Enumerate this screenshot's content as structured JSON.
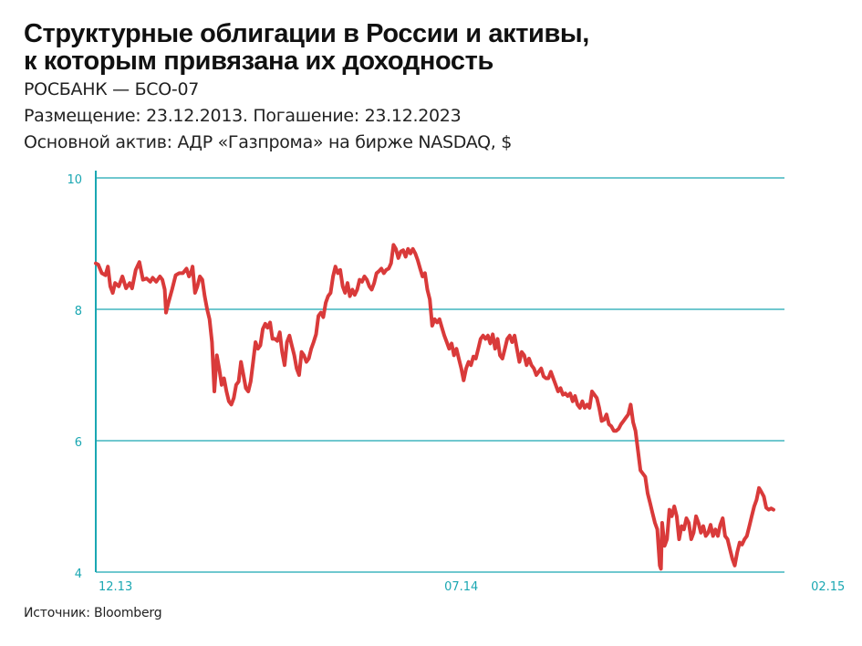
{
  "header": {
    "title_line1": "Структурные облигации в России и активы,",
    "title_line2": "к которым привязана их доходность",
    "bank": "РОСБАНК — БСО-07",
    "dates": "Размещение: 23.12.2013. Погашение: 23.12.2023",
    "asset": "Основной актив: АДР «Газпрома» на бирже NASDAQ, $"
  },
  "footer": {
    "source": "Источник: Bloomberg"
  },
  "colors": {
    "line": "#d93a3a",
    "axis": "#1aa7b2",
    "tick_text": "#1aa7b2"
  },
  "chart_data": {
    "type": "line",
    "title": "",
    "xlabel": "",
    "ylabel": "",
    "ylim": [
      4,
      10
    ],
    "yticks": [
      10,
      8,
      6,
      4
    ],
    "xtick_labels": [
      {
        "label": "12.13",
        "index": 0
      },
      {
        "label": "07.14",
        "index": 302
      },
      {
        "label": "02.15",
        "index": 605
      }
    ],
    "grid": true,
    "series": [
      {
        "anchors": [
          [
            0,
            8.7
          ],
          [
            2,
            8.68
          ],
          [
            5,
            8.55
          ],
          [
            8,
            8.52
          ],
          [
            10,
            8.65
          ],
          [
            12,
            8.35
          ],
          [
            14,
            8.25
          ],
          [
            16,
            8.4
          ],
          [
            19,
            8.35
          ],
          [
            22,
            8.5
          ],
          [
            25,
            8.32
          ],
          [
            28,
            8.4
          ],
          [
            30,
            8.32
          ],
          [
            33,
            8.6
          ],
          [
            36,
            8.72
          ],
          [
            39,
            8.45
          ],
          [
            42,
            8.47
          ],
          [
            45,
            8.42
          ],
          [
            47,
            8.48
          ],
          [
            50,
            8.42
          ],
          [
            53,
            8.5
          ],
          [
            55,
            8.45
          ],
          [
            57,
            8.3
          ],
          [
            58,
            7.95
          ],
          [
            60,
            8.1
          ],
          [
            63,
            8.3
          ],
          [
            66,
            8.52
          ],
          [
            69,
            8.55
          ],
          [
            72,
            8.55
          ],
          [
            75,
            8.62
          ],
          [
            77,
            8.5
          ],
          [
            79,
            8.58
          ],
          [
            80,
            8.65
          ],
          [
            82,
            8.25
          ],
          [
            84,
            8.35
          ],
          [
            86,
            8.5
          ],
          [
            88,
            8.45
          ],
          [
            90,
            8.2
          ],
          [
            92,
            8.0
          ],
          [
            94,
            7.85
          ],
          [
            96,
            7.5
          ],
          [
            98,
            6.75
          ],
          [
            100,
            7.3
          ],
          [
            102,
            7.1
          ],
          [
            104,
            6.85
          ],
          [
            106,
            6.95
          ],
          [
            108,
            6.75
          ],
          [
            110,
            6.6
          ],
          [
            112,
            6.55
          ],
          [
            114,
            6.65
          ],
          [
            116,
            6.85
          ],
          [
            118,
            6.9
          ],
          [
            120,
            7.2
          ],
          [
            122,
            7.0
          ],
          [
            124,
            6.8
          ],
          [
            126,
            6.75
          ],
          [
            128,
            6.9
          ],
          [
            130,
            7.2
          ],
          [
            132,
            7.5
          ],
          [
            134,
            7.4
          ],
          [
            136,
            7.45
          ],
          [
            138,
            7.7
          ],
          [
            140,
            7.78
          ],
          [
            142,
            7.72
          ],
          [
            144,
            7.8
          ],
          [
            146,
            7.55
          ],
          [
            148,
            7.55
          ],
          [
            150,
            7.52
          ],
          [
            152,
            7.65
          ],
          [
            154,
            7.35
          ],
          [
            156,
            7.15
          ],
          [
            158,
            7.5
          ],
          [
            160,
            7.6
          ],
          [
            162,
            7.45
          ],
          [
            164,
            7.3
          ],
          [
            166,
            7.1
          ],
          [
            168,
            7.0
          ],
          [
            170,
            7.35
          ],
          [
            172,
            7.3
          ],
          [
            174,
            7.2
          ],
          [
            176,
            7.25
          ],
          [
            178,
            7.4
          ],
          [
            180,
            7.5
          ],
          [
            182,
            7.62
          ],
          [
            184,
            7.9
          ],
          [
            186,
            7.95
          ],
          [
            188,
            7.88
          ],
          [
            190,
            8.1
          ],
          [
            192,
            8.2
          ],
          [
            194,
            8.25
          ],
          [
            196,
            8.5
          ],
          [
            198,
            8.65
          ],
          [
            200,
            8.55
          ],
          [
            202,
            8.6
          ],
          [
            204,
            8.35
          ],
          [
            206,
            8.25
          ],
          [
            208,
            8.4
          ],
          [
            210,
            8.2
          ],
          [
            212,
            8.3
          ],
          [
            214,
            8.22
          ],
          [
            216,
            8.3
          ],
          [
            218,
            8.45
          ],
          [
            220,
            8.42
          ],
          [
            222,
            8.5
          ],
          [
            224,
            8.45
          ],
          [
            226,
            8.35
          ],
          [
            228,
            8.3
          ],
          [
            230,
            8.4
          ],
          [
            232,
            8.55
          ],
          [
            234,
            8.58
          ],
          [
            236,
            8.62
          ],
          [
            238,
            8.55
          ],
          [
            240,
            8.6
          ],
          [
            242,
            8.62
          ],
          [
            244,
            8.7
          ],
          [
            246,
            8.98
          ],
          [
            248,
            8.92
          ],
          [
            250,
            8.78
          ],
          [
            252,
            8.88
          ],
          [
            254,
            8.9
          ],
          [
            256,
            8.8
          ],
          [
            258,
            8.92
          ],
          [
            260,
            8.85
          ],
          [
            262,
            8.92
          ],
          [
            264,
            8.85
          ],
          [
            266,
            8.75
          ],
          [
            268,
            8.62
          ],
          [
            270,
            8.5
          ],
          [
            272,
            8.55
          ],
          [
            274,
            8.3
          ],
          [
            276,
            8.15
          ],
          [
            278,
            7.75
          ],
          [
            280,
            7.85
          ],
          [
            282,
            7.8
          ],
          [
            284,
            7.85
          ],
          [
            286,
            7.72
          ],
          [
            288,
            7.6
          ],
          [
            290,
            7.5
          ],
          [
            292,
            7.4
          ],
          [
            294,
            7.48
          ],
          [
            296,
            7.3
          ],
          [
            298,
            7.4
          ],
          [
            300,
            7.25
          ],
          [
            302,
            7.1
          ],
          [
            304,
            6.92
          ],
          [
            306,
            7.1
          ],
          [
            308,
            7.2
          ],
          [
            310,
            7.15
          ],
          [
            312,
            7.28
          ],
          [
            314,
            7.25
          ],
          [
            316,
            7.4
          ],
          [
            318,
            7.55
          ],
          [
            320,
            7.6
          ],
          [
            322,
            7.55
          ],
          [
            324,
            7.6
          ],
          [
            326,
            7.48
          ],
          [
            328,
            7.62
          ],
          [
            330,
            7.4
          ],
          [
            332,
            7.55
          ],
          [
            334,
            7.3
          ],
          [
            336,
            7.25
          ],
          [
            338,
            7.4
          ],
          [
            340,
            7.55
          ],
          [
            342,
            7.6
          ],
          [
            344,
            7.5
          ],
          [
            346,
            7.6
          ],
          [
            348,
            7.4
          ],
          [
            350,
            7.2
          ],
          [
            352,
            7.35
          ],
          [
            354,
            7.3
          ],
          [
            356,
            7.15
          ],
          [
            358,
            7.25
          ],
          [
            360,
            7.15
          ],
          [
            362,
            7.1
          ],
          [
            364,
            7.0
          ],
          [
            366,
            7.05
          ],
          [
            368,
            7.1
          ],
          [
            370,
            6.98
          ],
          [
            372,
            6.95
          ],
          [
            374,
            6.95
          ],
          [
            376,
            7.05
          ],
          [
            378,
            6.95
          ],
          [
            380,
            6.85
          ],
          [
            382,
            6.75
          ],
          [
            384,
            6.8
          ],
          [
            386,
            6.7
          ],
          [
            388,
            6.72
          ],
          [
            390,
            6.68
          ],
          [
            392,
            6.72
          ],
          [
            394,
            6.6
          ],
          [
            396,
            6.68
          ],
          [
            398,
            6.55
          ],
          [
            400,
            6.5
          ],
          [
            402,
            6.6
          ],
          [
            404,
            6.5
          ],
          [
            406,
            6.55
          ],
          [
            408,
            6.5
          ],
          [
            410,
            6.75
          ],
          [
            412,
            6.7
          ],
          [
            414,
            6.65
          ],
          [
            416,
            6.5
          ],
          [
            418,
            6.3
          ],
          [
            420,
            6.32
          ],
          [
            422,
            6.4
          ],
          [
            424,
            6.25
          ],
          [
            426,
            6.22
          ],
          [
            428,
            6.15
          ],
          [
            430,
            6.15
          ],
          [
            432,
            6.18
          ],
          [
            434,
            6.25
          ],
          [
            436,
            6.3
          ],
          [
            438,
            6.35
          ],
          [
            440,
            6.4
          ],
          [
            442,
            6.55
          ],
          [
            444,
            6.28
          ],
          [
            446,
            6.15
          ],
          [
            448,
            5.85
          ],
          [
            450,
            5.55
          ],
          [
            452,
            5.5
          ],
          [
            454,
            5.45
          ],
          [
            456,
            5.2
          ],
          [
            458,
            5.05
          ],
          [
            460,
            4.9
          ],
          [
            462,
            4.75
          ],
          [
            464,
            4.65
          ],
          [
            466,
            4.1
          ],
          [
            467,
            4.05
          ],
          [
            468,
            4.75
          ],
          [
            470,
            4.4
          ],
          [
            472,
            4.5
          ],
          [
            474,
            4.95
          ],
          [
            476,
            4.85
          ],
          [
            478,
            5.0
          ],
          [
            480,
            4.85
          ],
          [
            482,
            4.5
          ],
          [
            484,
            4.7
          ],
          [
            486,
            4.65
          ],
          [
            488,
            4.82
          ],
          [
            490,
            4.75
          ],
          [
            492,
            4.5
          ],
          [
            494,
            4.6
          ],
          [
            496,
            4.85
          ],
          [
            498,
            4.75
          ],
          [
            500,
            4.6
          ],
          [
            502,
            4.7
          ],
          [
            504,
            4.55
          ],
          [
            506,
            4.6
          ],
          [
            508,
            4.72
          ],
          [
            510,
            4.55
          ],
          [
            512,
            4.65
          ],
          [
            514,
            4.55
          ],
          [
            516,
            4.72
          ],
          [
            518,
            4.82
          ],
          [
            520,
            4.55
          ],
          [
            522,
            4.5
          ],
          [
            524,
            4.35
          ],
          [
            526,
            4.2
          ],
          [
            528,
            4.1
          ],
          [
            530,
            4.3
          ],
          [
            532,
            4.45
          ],
          [
            534,
            4.42
          ],
          [
            536,
            4.5
          ],
          [
            538,
            4.55
          ],
          [
            540,
            4.7
          ],
          [
            542,
            4.85
          ],
          [
            544,
            5.0
          ],
          [
            546,
            5.1
          ],
          [
            548,
            5.28
          ],
          [
            550,
            5.22
          ],
          [
            552,
            5.15
          ],
          [
            554,
            4.98
          ],
          [
            556,
            4.95
          ],
          [
            558,
            4.97
          ],
          [
            560,
            4.95
          ]
        ]
      }
    ]
  }
}
